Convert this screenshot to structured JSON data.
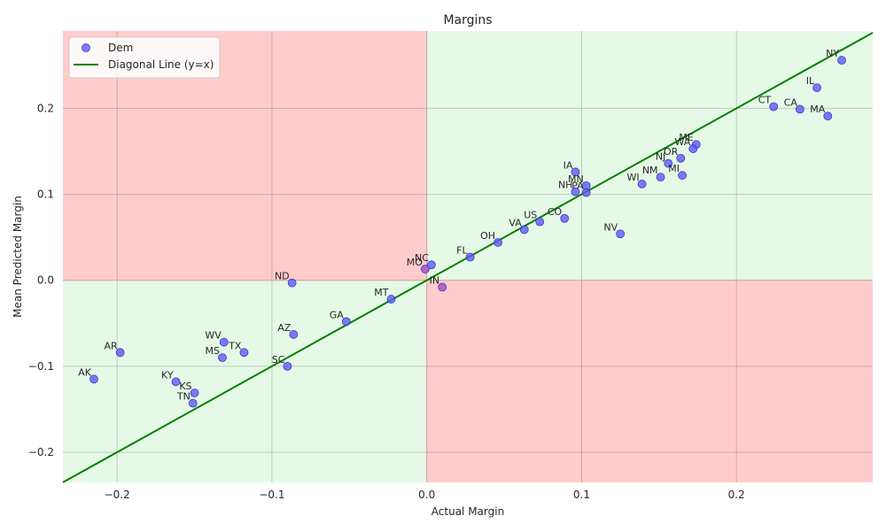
{
  "chart_data": {
    "type": "scatter",
    "title": "Margins",
    "xlabel": "Actual Margin",
    "ylabel": "Mean Predicted Margin",
    "xlim": [
      -0.235,
      0.288
    ],
    "ylim": [
      -0.235,
      0.29
    ],
    "x_ticks": [
      -0.2,
      -0.1,
      0.0,
      0.1,
      0.2
    ],
    "x_tick_labels": [
      "−0.2",
      "−0.1",
      "0.0",
      "0.1",
      "0.2"
    ],
    "y_ticks": [
      -0.2,
      -0.1,
      0.0,
      0.1,
      0.2
    ],
    "y_tick_labels": [
      "−0.2",
      "−0.1",
      "0.0",
      "0.1",
      "0.2"
    ],
    "grid": true,
    "legend_position": "top-left",
    "legend": {
      "series_label": "Dem",
      "line_label": "Diagonal Line (y=x)"
    },
    "colors": {
      "point_fill": "#5b5bf0",
      "point_edge": "#3a3ad6",
      "point_fill_disagree": "#a04cc8",
      "diagonal": "#008000",
      "region_agree": "#e6f9e6",
      "region_disagree": "#ffcccc",
      "grid": "#c8c8c8",
      "axis_line": "#c8a0a0"
    },
    "series": [
      {
        "name": "Dem",
        "points": [
          {
            "label": "NY",
            "x": 0.268,
            "y": 0.256
          },
          {
            "label": "IL",
            "x": 0.252,
            "y": 0.224
          },
          {
            "label": "CT",
            "x": 0.224,
            "y": 0.202
          },
          {
            "label": "CA",
            "x": 0.241,
            "y": 0.199
          },
          {
            "label": "MA",
            "x": 0.259,
            "y": 0.191
          },
          {
            "label": "ME",
            "x": 0.174,
            "y": 0.158
          },
          {
            "label": "WA",
            "x": 0.172,
            "y": 0.153
          },
          {
            "label": "OR",
            "x": 0.164,
            "y": 0.142
          },
          {
            "label": "NJ",
            "x": 0.156,
            "y": 0.136
          },
          {
            "label": "NM",
            "x": 0.151,
            "y": 0.12
          },
          {
            "label": "MI",
            "x": 0.165,
            "y": 0.122
          },
          {
            "label": "IA",
            "x": 0.096,
            "y": 0.126
          },
          {
            "label": "WI",
            "x": 0.139,
            "y": 0.112
          },
          {
            "label": "MN",
            "x": 0.103,
            "y": 0.11
          },
          {
            "label": "NH",
            "x": 0.096,
            "y": 0.103
          },
          {
            "label": "PA",
            "x": 0.103,
            "y": 0.102
          },
          {
            "label": "CO",
            "x": 0.089,
            "y": 0.072
          },
          {
            "label": "US",
            "x": 0.073,
            "y": 0.068
          },
          {
            "label": "VA",
            "x": 0.063,
            "y": 0.059
          },
          {
            "label": "NV",
            "x": 0.125,
            "y": 0.054
          },
          {
            "label": "OH",
            "x": 0.046,
            "y": 0.044
          },
          {
            "label": "FL",
            "x": 0.028,
            "y": 0.027
          },
          {
            "label": "NC",
            "x": 0.003,
            "y": 0.018
          },
          {
            "label": "MO",
            "x": -0.001,
            "y": 0.013
          },
          {
            "label": "IN",
            "x": 0.01,
            "y": -0.008
          },
          {
            "label": "ND",
            "x": -0.087,
            "y": -0.003
          },
          {
            "label": "MT",
            "x": -0.023,
            "y": -0.022
          },
          {
            "label": "GA",
            "x": -0.052,
            "y": -0.048
          },
          {
            "label": "AZ",
            "x": -0.086,
            "y": -0.063
          },
          {
            "label": "WV",
            "x": -0.131,
            "y": -0.072
          },
          {
            "label": "TX",
            "x": -0.118,
            "y": -0.084
          },
          {
            "label": "MS",
            "x": -0.132,
            "y": -0.09
          },
          {
            "label": "SC",
            "x": -0.09,
            "y": -0.1
          },
          {
            "label": "AR",
            "x": -0.198,
            "y": -0.084
          },
          {
            "label": "AK",
            "x": -0.215,
            "y": -0.115
          },
          {
            "label": "KY",
            "x": -0.162,
            "y": -0.118
          },
          {
            "label": "KS",
            "x": -0.15,
            "y": -0.131
          },
          {
            "label": "TN",
            "x": -0.151,
            "y": -0.143
          }
        ]
      }
    ]
  }
}
